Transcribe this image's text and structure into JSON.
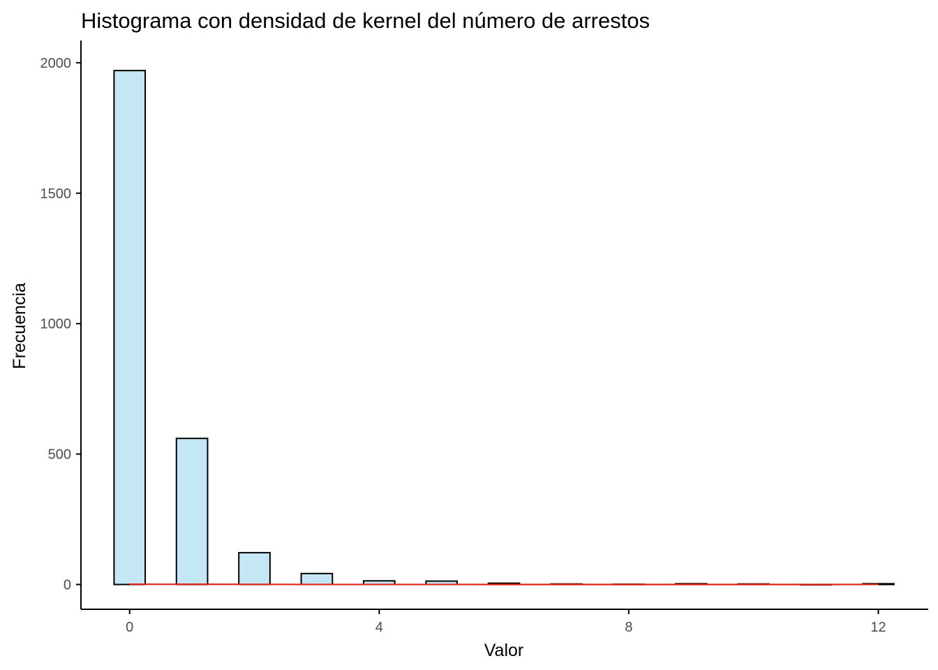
{
  "chart_data": {
    "type": "bar",
    "title": "Histograma con densidad de kernel del número de arrestos",
    "xlabel": "Valor",
    "ylabel": "Frecuencia",
    "xlim": [
      -0.78,
      12.8
    ],
    "ylim": [
      -95,
      2080
    ],
    "x_ticks": [
      0,
      4,
      8,
      12
    ],
    "y_ticks": [
      0,
      500,
      1000,
      1500,
      2000
    ],
    "bin_width": 0.5,
    "bars": [
      {
        "x": 0,
        "count": 1970
      },
      {
        "x": 1,
        "count": 560
      },
      {
        "x": 2,
        "count": 122
      },
      {
        "x": 3,
        "count": 42
      },
      {
        "x": 4,
        "count": 14
      },
      {
        "x": 5,
        "count": 13
      },
      {
        "x": 6,
        "count": 5
      },
      {
        "x": 7,
        "count": 2
      },
      {
        "x": 8,
        "count": 1
      },
      {
        "x": 9,
        "count": 3
      },
      {
        "x": 10,
        "count": 2
      },
      {
        "x": 11,
        "count": 0
      },
      {
        "x": 12,
        "count": 3
      }
    ],
    "density_line": {
      "x": [
        0.0,
        0.25,
        0.5,
        1.0,
        2.0,
        3.0,
        4.0,
        6.0,
        8.0,
        10.0,
        12.0
      ],
      "y": [
        1.0,
        1.2,
        0.8,
        0.9,
        0.5,
        0.2,
        0.1,
        0.05,
        0.02,
        0.02,
        0.1
      ]
    },
    "grid": false,
    "legend": "none",
    "colors": {
      "bar_fill": "#c5e6f5",
      "bar_stroke": "#000000",
      "density": "#e0241b",
      "axis": "#000000",
      "tick_label": "#4d4d4d"
    }
  }
}
